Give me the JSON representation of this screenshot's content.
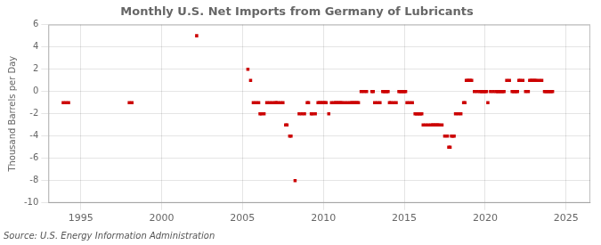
{
  "chart_data": {
    "type": "scatter",
    "title": "Monthly U.S. Net Imports from Germany of Lubricants",
    "ylabel": "Thousand Barrels per Day",
    "annotation": "Source: U.S. Energy Information Administration",
    "color": "#cc0000",
    "marker": "square",
    "grid": true,
    "xlim": [
      1993.0,
      2026.5
    ],
    "ylim": [
      -10,
      6
    ],
    "xticks": [
      1995,
      2000,
      2005,
      2010,
      2015,
      2020,
      2025
    ],
    "yticks": [
      -10,
      -8,
      -6,
      -4,
      -2,
      0,
      2,
      4,
      6
    ],
    "x": [
      1993.917,
      1994.083,
      1994.25,
      1998.0,
      1998.167,
      2002.167,
      2005.333,
      2005.5,
      2005.667,
      2005.833,
      2006.0,
      2006.083,
      2006.167,
      2006.333,
      2006.5,
      2006.667,
      2006.833,
      2007.0,
      2007.083,
      2007.167,
      2007.333,
      2007.5,
      2007.667,
      2007.75,
      2007.917,
      2008.0,
      2008.25,
      2008.5,
      2008.667,
      2008.833,
      2009.0,
      2009.083,
      2009.25,
      2009.333,
      2009.5,
      2009.667,
      2009.75,
      2009.833,
      2009.917,
      2010.0,
      2010.083,
      2010.167,
      2010.333,
      2010.5,
      2010.667,
      2010.75,
      2010.833,
      2010.917,
      2011.0,
      2011.083,
      2011.167,
      2011.333,
      2011.5,
      2011.667,
      2011.75,
      2011.833,
      2011.917,
      2012.0,
      2012.083,
      2012.167,
      2012.333,
      2012.5,
      2012.667,
      2013.0,
      2013.083,
      2013.167,
      2013.333,
      2013.5,
      2013.667,
      2013.75,
      2013.833,
      2013.917,
      2014.0,
      2014.083,
      2014.167,
      2014.333,
      2014.5,
      2014.667,
      2014.75,
      2014.833,
      2014.917,
      2015.0,
      2015.083,
      2015.167,
      2015.333,
      2015.5,
      2015.667,
      2015.75,
      2015.833,
      2015.917,
      2016.0,
      2016.083,
      2016.167,
      2016.333,
      2016.5,
      2016.667,
      2016.75,
      2016.833,
      2016.917,
      2017.0,
      2017.083,
      2017.167,
      2017.333,
      2017.5,
      2017.667,
      2017.75,
      2017.833,
      2017.917,
      2018.0,
      2018.083,
      2018.167,
      2018.333,
      2018.5,
      2018.667,
      2018.75,
      2018.833,
      2018.917,
      2019.0,
      2019.083,
      2019.167,
      2019.333,
      2019.5,
      2019.667,
      2019.75,
      2019.833,
      2019.917,
      2020.0,
      2020.083,
      2020.167,
      2020.333,
      2020.5,
      2020.667,
      2020.75,
      2020.833,
      2020.917,
      2021.0,
      2021.083,
      2021.167,
      2021.333,
      2021.5,
      2021.667,
      2021.75,
      2021.833,
      2021.917,
      2022.0,
      2022.083,
      2022.167,
      2022.333,
      2022.5,
      2022.667,
      2022.75,
      2022.833,
      2022.917,
      2023.0,
      2023.083,
      2023.167,
      2023.333,
      2023.5,
      2023.667,
      2023.75,
      2023.833,
      2023.917,
      2024.0,
      2024.083,
      2024.167
    ],
    "values": [
      -1.0,
      -1.0,
      -1.0,
      -1.0,
      -1.0,
      5.0,
      2.0,
      1.0,
      -1.0,
      -1.0,
      -1.0,
      -2.0,
      -2.0,
      -2.0,
      -1.0,
      -1.0,
      -1.0,
      -1.0,
      -1.0,
      -1.0,
      -1.0,
      -1.0,
      -3.0,
      -3.0,
      -4.0,
      -4.0,
      -8.0,
      -2.0,
      -2.0,
      -2.0,
      -1.0,
      -1.0,
      -2.0,
      -2.0,
      -2.0,
      -1.0,
      -1.0,
      -1.0,
      -1.0,
      -1.0,
      -1.0,
      -1.0,
      -2.0,
      -1.0,
      -1.0,
      -1.0,
      -1.0,
      -1.0,
      -1.0,
      -1.0,
      -1.0,
      -1.0,
      -1.0,
      -1.0,
      -1.0,
      -1.0,
      -1.0,
      -1.0,
      -1.0,
      -1.0,
      0.0,
      0.0,
      0.0,
      0.0,
      0.0,
      -1.0,
      -1.0,
      -1.0,
      0.0,
      0.0,
      0.0,
      0.0,
      0.0,
      -1.0,
      -1.0,
      -1.0,
      -1.0,
      0.0,
      0.0,
      0.0,
      0.0,
      0.0,
      0.0,
      -1.0,
      -1.0,
      -1.0,
      -2.0,
      -2.0,
      -2.0,
      -2.0,
      -2.0,
      -2.0,
      -3.0,
      -3.0,
      -3.0,
      -3.0,
      -3.0,
      -3.0,
      -3.0,
      -3.0,
      -3.0,
      -3.0,
      -3.0,
      -4.0,
      -4.0,
      -5.0,
      -5.0,
      -4.0,
      -4.0,
      -4.0,
      -2.0,
      -2.0,
      -2.0,
      -1.0,
      -1.0,
      1.0,
      1.0,
      1.0,
      1.0,
      1.0,
      0.0,
      0.0,
      0.0,
      0.0,
      0.0,
      0.0,
      0.0,
      0.0,
      -1.0,
      0.0,
      0.0,
      0.0,
      0.0,
      0.0,
      0.0,
      0.0,
      0.0,
      0.0,
      1.0,
      1.0,
      0.0,
      0.0,
      0.0,
      0.0,
      0.0,
      1.0,
      1.0,
      1.0,
      0.0,
      0.0,
      1.0,
      1.0,
      1.0,
      1.0,
      1.0,
      1.0,
      1.0,
      1.0,
      0.0,
      0.0,
      0.0,
      0.0,
      0.0,
      0.0,
      0.0
    ]
  }
}
